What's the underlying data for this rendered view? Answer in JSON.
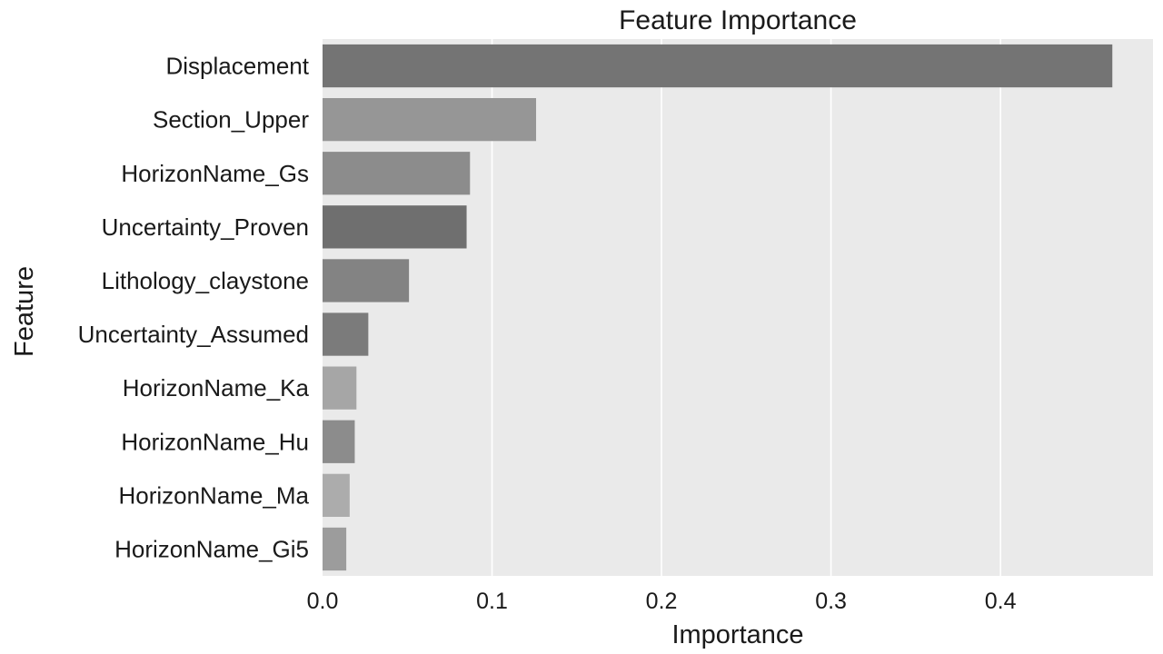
{
  "chart_data": {
    "type": "bar",
    "orientation": "horizontal",
    "title": "Feature Importance",
    "xlabel": "Importance",
    "ylabel": "Feature",
    "xlim": [
      0,
      0.49
    ],
    "xticks": [
      0.0,
      0.1,
      0.2,
      0.3,
      0.4
    ],
    "xtick_labels": [
      "0.0",
      "0.1",
      "0.2",
      "0.3",
      "0.4"
    ],
    "grid": "vertical",
    "legend": "none",
    "categories": [
      "Displacement",
      "Section_Upper",
      "HorizonName_Gs",
      "Uncertainty_Proven",
      "Lithology_claystone",
      "Uncertainty_Assumed",
      "HorizonName_Ka",
      "HorizonName_Hu",
      "HorizonName_Ma",
      "HorizonName_Gi5"
    ],
    "values": [
      0.466,
      0.126,
      0.087,
      0.085,
      0.051,
      0.027,
      0.02,
      0.019,
      0.016,
      0.014
    ],
    "colors": [
      "#747474",
      "#969696",
      "#8c8c8c",
      "#6f6f6f",
      "#838383",
      "#7b7b7b",
      "#a6a6a6",
      "#8c8c8c",
      "#acacac",
      "#9c9c9c"
    ]
  },
  "colors": {
    "plot_background": "#eaeaea",
    "grid": "#ffffff"
  }
}
